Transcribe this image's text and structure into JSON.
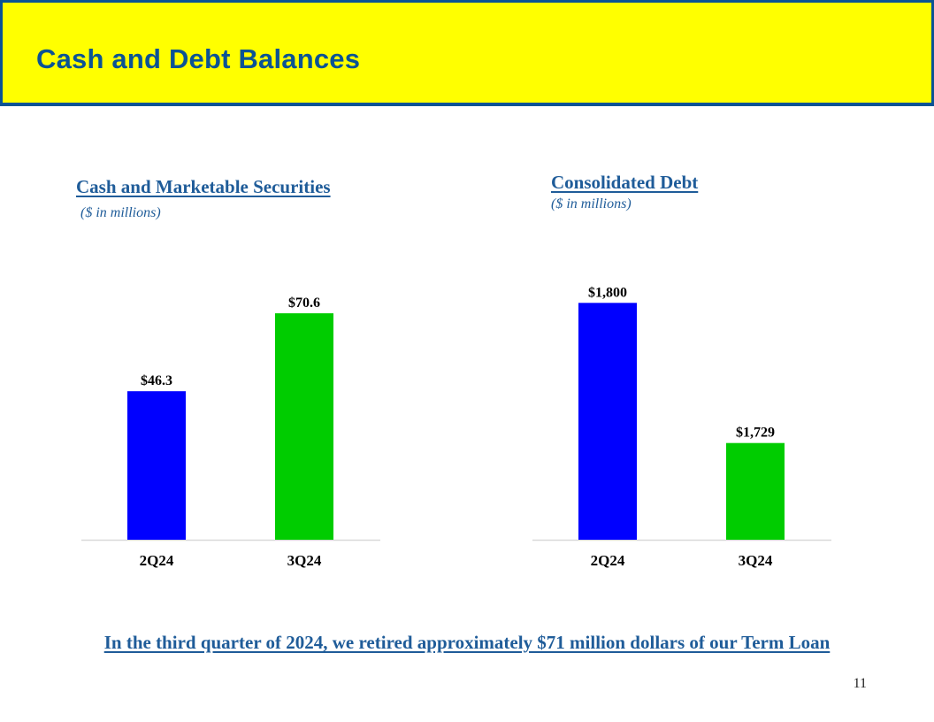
{
  "header": {
    "title": "Cash and Debt Balances"
  },
  "colors": {
    "header_bg": "#ffff00",
    "header_border": "#0b5394",
    "title": "#0b5394",
    "text_blue": "#1f5c99",
    "bar_2q24": "#0000ff",
    "bar_3q24": "#00cc00"
  },
  "chart_data": [
    {
      "type": "bar",
      "title": "Cash and Marketable Securities",
      "subtitle": "($ in millions)",
      "categories": [
        "2Q24",
        "3Q24"
      ],
      "values": [
        46.3,
        70.6
      ],
      "data_labels": [
        "$46.3",
        "$70.6"
      ],
      "colors": [
        "#0000ff",
        "#00cc00"
      ],
      "ylim": [
        0,
        80
      ],
      "xlabel": "",
      "ylabel": "",
      "grid": false
    },
    {
      "type": "bar",
      "title": "Consolidated Debt",
      "subtitle": "($ in millions)",
      "categories": [
        "2Q24",
        "3Q24"
      ],
      "values": [
        1800,
        1729
      ],
      "data_labels": [
        "$1,800",
        "$1,729"
      ],
      "colors": [
        "#0000ff",
        "#00cc00"
      ],
      "ylim": [
        1680,
        1810
      ],
      "xlabel": "",
      "ylabel": "",
      "grid": false
    }
  ],
  "footnote": "In the third quarter of 2024, we retired approximately $71 million dollars of our Term Loan",
  "page_number": "11"
}
